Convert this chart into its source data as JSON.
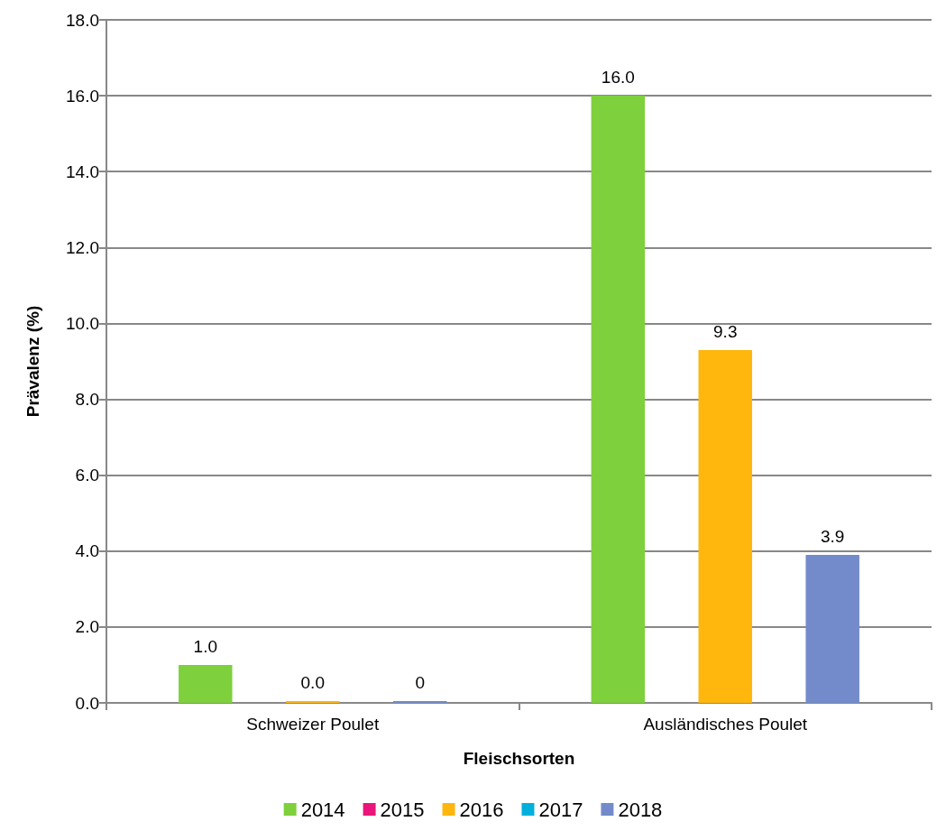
{
  "chart_data": {
    "type": "bar",
    "xlabel": "Fleischsorten",
    "ylabel": "Prävalenz (%)",
    "categories": [
      "Schweizer Poulet",
      "Ausländisches Poulet"
    ],
    "series": [
      {
        "name": "2014",
        "color": "#7ed03c",
        "values": [
          1.0,
          16.0
        ],
        "value_labels": [
          "1.0",
          "16.0"
        ]
      },
      {
        "name": "2015",
        "color": "#ea157a",
        "values": [
          null,
          null
        ],
        "value_labels": [
          null,
          null
        ]
      },
      {
        "name": "2016",
        "color": "#ffb60d",
        "values": [
          0.0,
          9.3
        ],
        "value_labels": [
          "0.0",
          "9.3"
        ]
      },
      {
        "name": "2017",
        "color": "#00afdb",
        "values": [
          null,
          null
        ],
        "value_labels": [
          null,
          null
        ]
      },
      {
        "name": "2018",
        "color": "#738bca",
        "values": [
          0,
          3.9
        ],
        "value_labels": [
          "0",
          "3.9"
        ]
      }
    ],
    "ylim": [
      0,
      18
    ],
    "yticks": [
      {
        "value": 0,
        "label": "0.0"
      },
      {
        "value": 2,
        "label": "2.0"
      },
      {
        "value": 4,
        "label": "4.0"
      },
      {
        "value": 6,
        "label": "6.0"
      },
      {
        "value": 8,
        "label": "8.0"
      },
      {
        "value": 10,
        "label": "10.0"
      },
      {
        "value": 12,
        "label": "12.0"
      },
      {
        "value": 14,
        "label": "14.0"
      },
      {
        "value": 16,
        "label": "16.0"
      },
      {
        "value": 18,
        "label": "18.0"
      }
    ],
    "grid": "y",
    "legend": "bottom"
  }
}
